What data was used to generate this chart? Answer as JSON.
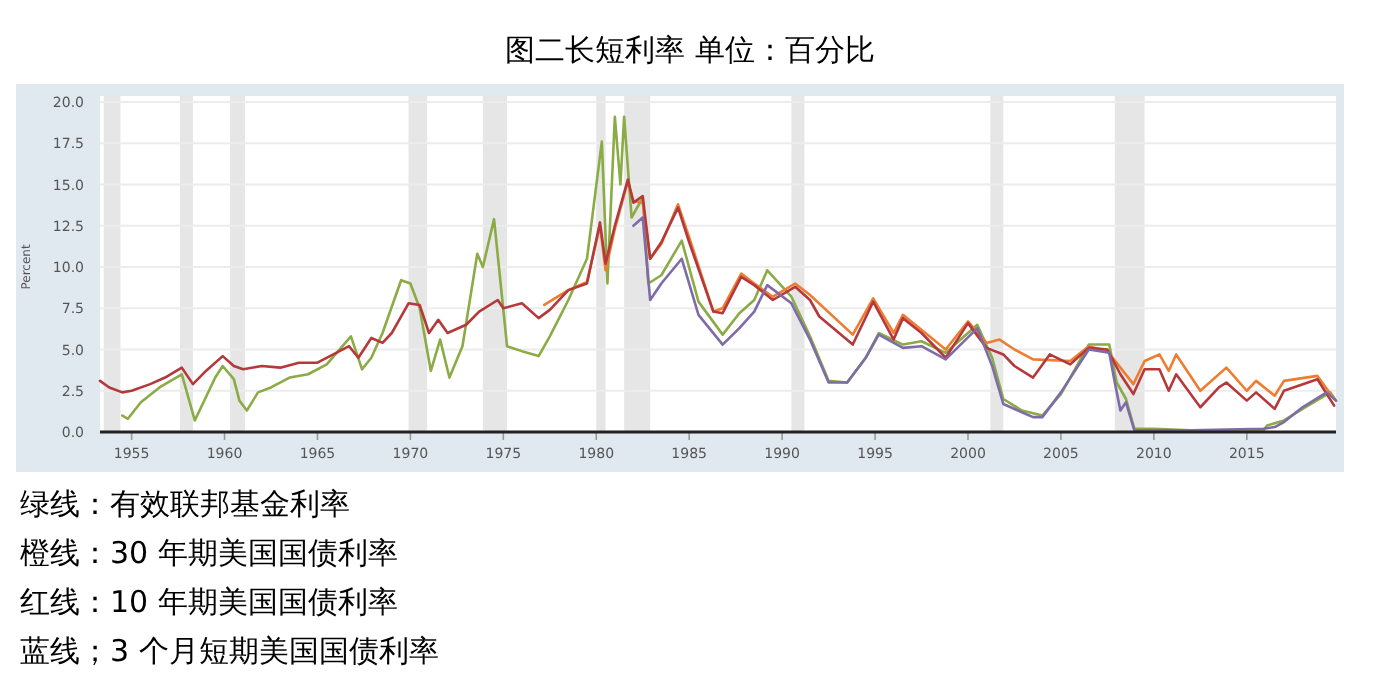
{
  "chart_data": {
    "type": "line",
    "title": "图二长短利率  单位：百分比",
    "ylabel": "Percent",
    "xlim": [
      1953.3,
      2019.8
    ],
    "xticks": [
      1955,
      1960,
      1965,
      1970,
      1975,
      1980,
      1985,
      1990,
      1995,
      2000,
      2005,
      2010,
      2015
    ],
    "ylim": [
      0,
      20
    ],
    "yticks": [
      {
        "value": 0,
        "label": "0.0"
      },
      {
        "value": 2.5,
        "label": "2.5"
      },
      {
        "value": 5,
        "label": "5.0"
      },
      {
        "value": 7.5,
        "label": "7.5"
      },
      {
        "value": 10,
        "label": "10.0"
      },
      {
        "value": 12.5,
        "label": "12.5"
      },
      {
        "value": 15,
        "label": "15.0"
      },
      {
        "value": 17.5,
        "label": "17.5"
      },
      {
        "value": 20,
        "label": "20.0"
      }
    ],
    "grid": "y",
    "marker": "none",
    "line_style": "solid",
    "annotations": [
      "绿线：有效联邦基金利率",
      "橙线：30 年期美国国债利率",
      "红线：10 年期美国国债利率",
      "蓝线；3 个月短期美国国债利率"
    ],
    "bands": [
      {
        "axis": "x",
        "from": 1953.5,
        "to": 1954.4,
        "color": "#e6e6e6"
      },
      {
        "axis": "x",
        "from": 1957.6,
        "to": 1958.3,
        "color": "#e6e6e6"
      },
      {
        "axis": "x",
        "from": 1960.3,
        "to": 1961.1,
        "color": "#e6e6e6"
      },
      {
        "axis": "x",
        "from": 1969.9,
        "to": 1970.9,
        "color": "#e6e6e6"
      },
      {
        "axis": "x",
        "from": 1973.9,
        "to": 1975.2,
        "color": "#e6e6e6"
      },
      {
        "axis": "x",
        "from": 1980.0,
        "to": 1980.5,
        "color": "#e6e6e6"
      },
      {
        "axis": "x",
        "from": 1981.5,
        "to": 1982.9,
        "color": "#e6e6e6"
      },
      {
        "axis": "x",
        "from": 1990.5,
        "to": 1991.2,
        "color": "#e6e6e6"
      },
      {
        "axis": "x",
        "from": 2001.2,
        "to": 2001.9,
        "color": "#e6e6e6"
      },
      {
        "axis": "x",
        "from": 2007.9,
        "to": 2009.5,
        "color": "#e6e6e6"
      }
    ],
    "series": [
      {
        "color": "#8aab45",
        "x": [
          1954.5,
          1954.8,
          1955.5,
          1956.5,
          1957.7,
          1958.4,
          1959.5,
          1959.9,
          1960.5,
          1960.8,
          1961.2,
          1961.8,
          1962.5,
          1963.5,
          1964.5,
          1965.5,
          1966.8,
          1967.4,
          1967.9,
          1968.5,
          1969.5,
          1970.0,
          1970.5,
          1971.1,
          1971.6,
          1972.1,
          1972.8,
          1973.6,
          1973.9,
          1974.5,
          1975.2,
          1976.0,
          1976.9,
          1977.5,
          1978.5,
          1979.5,
          1980.3,
          1980.6,
          1981.0,
          1981.3,
          1981.5,
          1981.9,
          1982.5,
          1982.8,
          1983.5,
          1984.6,
          1985.5,
          1986.8,
          1987.7,
          1988.5,
          1989.2,
          1990.5,
          1991.5,
          1992.5,
          1993.5,
          1994.5,
          1995.2,
          1996.5,
          1997.5,
          1998.8,
          2000.5,
          2001.3,
          2001.9,
          2002.9,
          2004.0,
          2005.0,
          2006.5,
          2007.6,
          2008.0,
          2008.5,
          2008.95,
          2010.0,
          2012.0,
          2015.9,
          2016.1,
          2017.0,
          2018.0,
          2019.5,
          2019.8
        ],
        "values": [
          1.0,
          0.8,
          1.8,
          2.7,
          3.5,
          0.7,
          3.3,
          4.0,
          3.2,
          1.9,
          1.3,
          2.4,
          2.7,
          3.3,
          3.5,
          4.1,
          5.8,
          3.8,
          4.5,
          6.0,
          9.2,
          9.0,
          7.5,
          3.7,
          5.6,
          3.3,
          5.2,
          10.8,
          10.0,
          12.9,
          5.2,
          4.9,
          4.6,
          5.8,
          8.0,
          10.5,
          17.6,
          9.0,
          19.1,
          15.0,
          19.1,
          13.0,
          14.2,
          9.0,
          9.5,
          11.6,
          7.9,
          5.9,
          7.2,
          8.0,
          9.8,
          8.2,
          5.8,
          3.1,
          3.0,
          4.5,
          6.0,
          5.3,
          5.5,
          4.8,
          6.5,
          4.5,
          2.0,
          1.3,
          1.0,
          2.3,
          5.3,
          5.3,
          3.0,
          2.0,
          0.2,
          0.2,
          0.1,
          0.1,
          0.4,
          0.7,
          1.4,
          2.4,
          1.9
        ]
      },
      {
        "color": "#ed7d31",
        "x": [
          1977.2,
          1978.5,
          1979.5,
          1980.2,
          1980.5,
          1981.0,
          1981.7,
          1982.0,
          1982.5,
          1982.9,
          1983.5,
          1984.4,
          1985.0,
          1986.3,
          1986.8,
          1987.8,
          1988.5,
          1989.5,
          1990.7,
          1991.5,
          1993.8,
          1994.9,
          1996.0,
          1996.5,
          1998.8,
          2000.0,
          2001.0,
          2001.7,
          2002.5,
          2003.5,
          2005.5,
          2006.5,
          2007.5,
          2008.9,
          2009.5,
          2010.3,
          2010.8,
          2011.2,
          2012.5,
          2013.9,
          2015.0,
          2015.5,
          2016.5,
          2017.0,
          2018.8,
          2019.7
        ],
        "values": [
          7.7,
          8.6,
          9.1,
          12.5,
          9.8,
          12.3,
          15.2,
          14.0,
          13.9,
          10.5,
          11.4,
          13.8,
          11.8,
          7.3,
          7.5,
          9.6,
          9.0,
          8.2,
          9.0,
          8.3,
          5.9,
          8.1,
          6.0,
          7.1,
          5.0,
          6.7,
          5.4,
          5.6,
          5.0,
          4.4,
          4.3,
          5.2,
          4.9,
          2.9,
          4.3,
          4.7,
          3.7,
          4.7,
          2.5,
          3.9,
          2.5,
          3.1,
          2.2,
          3.1,
          3.4,
          2.0
        ]
      },
      {
        "color": "#b5383b",
        "x": [
          1953.3,
          1953.8,
          1954.5,
          1955.0,
          1956.0,
          1956.8,
          1957.7,
          1958.3,
          1959.0,
          1959.9,
          1960.5,
          1961.0,
          1962.0,
          1963.0,
          1964.0,
          1965.0,
          1966.7,
          1967.2,
          1967.9,
          1968.5,
          1969.0,
          1969.9,
          1970.5,
          1971.0,
          1971.5,
          1972.0,
          1973.0,
          1973.7,
          1974.7,
          1975.0,
          1976.0,
          1976.9,
          1977.5,
          1978.5,
          1979.5,
          1980.2,
          1980.5,
          1981.0,
          1981.7,
          1982.0,
          1982.5,
          1982.9,
          1983.5,
          1984.4,
          1985.0,
          1986.3,
          1986.8,
          1987.8,
          1988.5,
          1989.5,
          1990.7,
          1991.5,
          1992.0,
          1993.8,
          1994.9,
          1996.0,
          1996.5,
          1997.5,
          1998.8,
          2000.0,
          2001.0,
          2001.9,
          2002.5,
          2003.5,
          2004.4,
          2005.5,
          2006.5,
          2007.5,
          2008.2,
          2008.9,
          2009.5,
          2010.3,
          2010.8,
          2011.2,
          2012.5,
          2013.5,
          2013.9,
          2015.0,
          2015.5,
          2016.5,
          2017.0,
          2018.8,
          2019.7
        ],
        "values": [
          3.1,
          2.7,
          2.4,
          2.5,
          2.9,
          3.3,
          3.9,
          2.9,
          3.7,
          4.6,
          4.0,
          3.8,
          4.0,
          3.9,
          4.2,
          4.2,
          5.2,
          4.5,
          5.7,
          5.4,
          6.0,
          7.8,
          7.7,
          6.0,
          6.8,
          6.0,
          6.5,
          7.3,
          8.0,
          7.5,
          7.8,
          6.9,
          7.4,
          8.6,
          9.0,
          12.7,
          10.2,
          12.5,
          15.3,
          13.9,
          14.3,
          10.5,
          11.5,
          13.6,
          11.5,
          7.3,
          7.2,
          9.4,
          8.9,
          8.0,
          8.8,
          8.0,
          7.0,
          5.3,
          7.9,
          5.6,
          6.9,
          6.0,
          4.5,
          6.6,
          5.1,
          4.7,
          4.0,
          3.3,
          4.7,
          4.1,
          5.1,
          5.0,
          3.5,
          2.3,
          3.8,
          3.8,
          2.5,
          3.5,
          1.5,
          2.7,
          3.0,
          1.9,
          2.4,
          1.4,
          2.5,
          3.2,
          1.6
        ]
      },
      {
        "color": "#7e6ba8",
        "x": [
          1982.0,
          1982.5,
          1982.9,
          1983.5,
          1984.6,
          1985.5,
          1986.8,
          1987.7,
          1988.5,
          1989.2,
          1990.5,
          1991.5,
          1992.5,
          1993.5,
          1994.5,
          1995.2,
          1996.5,
          1997.5,
          1998.8,
          2000.5,
          2001.3,
          2001.9,
          2002.9,
          2003.5,
          2004.0,
          2005.0,
          2006.5,
          2007.6,
          2007.9,
          2008.2,
          2008.5,
          2008.95,
          2010.0,
          2012.0,
          2015.9,
          2016.5,
          2017.0,
          2018.0,
          2019.3,
          2019.8
        ],
        "values": [
          12.5,
          13.0,
          8.0,
          9.0,
          10.5,
          7.1,
          5.3,
          6.3,
          7.3,
          8.9,
          7.8,
          5.6,
          3.0,
          3.0,
          4.5,
          5.9,
          5.1,
          5.2,
          4.4,
          6.3,
          4.0,
          1.7,
          1.2,
          0.9,
          0.9,
          2.4,
          5.0,
          4.8,
          3.0,
          1.3,
          1.8,
          0.1,
          0.1,
          0.1,
          0.2,
          0.3,
          0.6,
          1.5,
          2.4,
          1.9
        ]
      }
    ]
  }
}
